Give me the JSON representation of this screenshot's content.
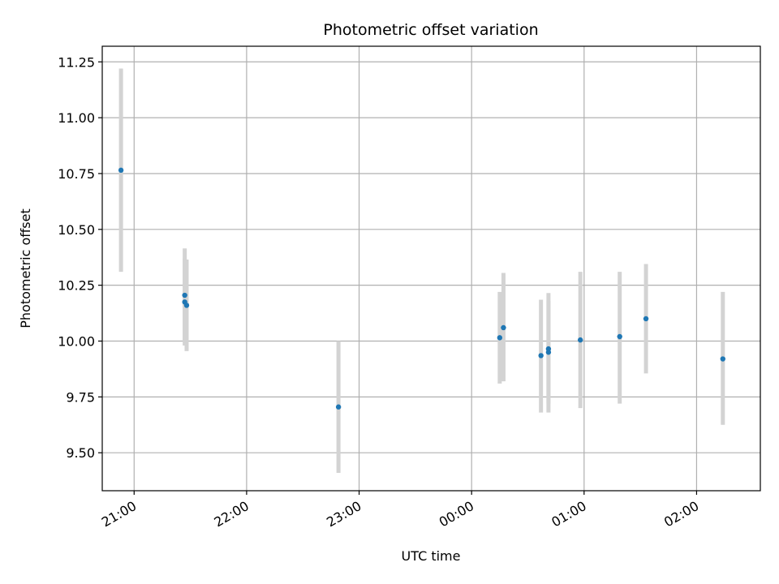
{
  "chart_data": {
    "type": "scatter",
    "title": "Photometric offset variation",
    "xlabel": "UTC time",
    "ylabel": "Photometric offset",
    "x_ticks": [
      {
        "time": "21:00",
        "label": "21:00"
      },
      {
        "time": "22:00",
        "label": "22:00"
      },
      {
        "time": "23:00",
        "label": "23:00"
      },
      {
        "time": "24:00",
        "label": "00:00"
      },
      {
        "time": "25:00",
        "label": "01:00"
      },
      {
        "time": "26:00",
        "label": "02:00"
      }
    ],
    "xlim": [
      "20:43",
      "26:34"
    ],
    "y_ticks": [
      "9.50",
      "9.75",
      "10.00",
      "10.25",
      "10.50",
      "10.75",
      "11.00",
      "11.25"
    ],
    "ylim": [
      9.33,
      11.32
    ],
    "grid": true,
    "colors": {
      "point": "#1f77b4",
      "errorbar": "#d3d3d3",
      "grid": "#b0b0b0"
    },
    "points": [
      {
        "time": "20:53",
        "y": 10.765,
        "err_low": 10.31,
        "err_high": 11.22
      },
      {
        "time": "21:27",
        "y": 10.205,
        "err_low": 9.995,
        "err_high": 10.415
      },
      {
        "time": "21:27",
        "y": 10.175,
        "err_low": 9.98,
        "err_high": 10.37
      },
      {
        "time": "21:28",
        "y": 10.16,
        "err_low": 9.955,
        "err_high": 10.365
      },
      {
        "time": "22:49",
        "y": 9.705,
        "err_low": 9.41,
        "err_high": 10.0
      },
      {
        "time": "24:15",
        "y": 10.015,
        "err_low": 9.81,
        "err_high": 10.22
      },
      {
        "time": "24:17",
        "y": 10.06,
        "err_low": 9.82,
        "err_high": 10.305
      },
      {
        "time": "24:37",
        "y": 9.935,
        "err_low": 9.68,
        "err_high": 10.185
      },
      {
        "time": "24:41",
        "y": 9.95,
        "err_low": 9.72,
        "err_high": 10.18
      },
      {
        "time": "24:41",
        "y": 9.965,
        "err_low": 9.68,
        "err_high": 10.215
      },
      {
        "time": "24:58",
        "y": 10.005,
        "err_low": 9.7,
        "err_high": 10.31
      },
      {
        "time": "25:19",
        "y": 10.02,
        "err_low": 9.72,
        "err_high": 10.31
      },
      {
        "time": "25:33",
        "y": 10.1,
        "err_low": 9.855,
        "err_high": 10.345
      },
      {
        "time": "26:14",
        "y": 9.92,
        "err_low": 9.625,
        "err_high": 10.22
      }
    ]
  }
}
